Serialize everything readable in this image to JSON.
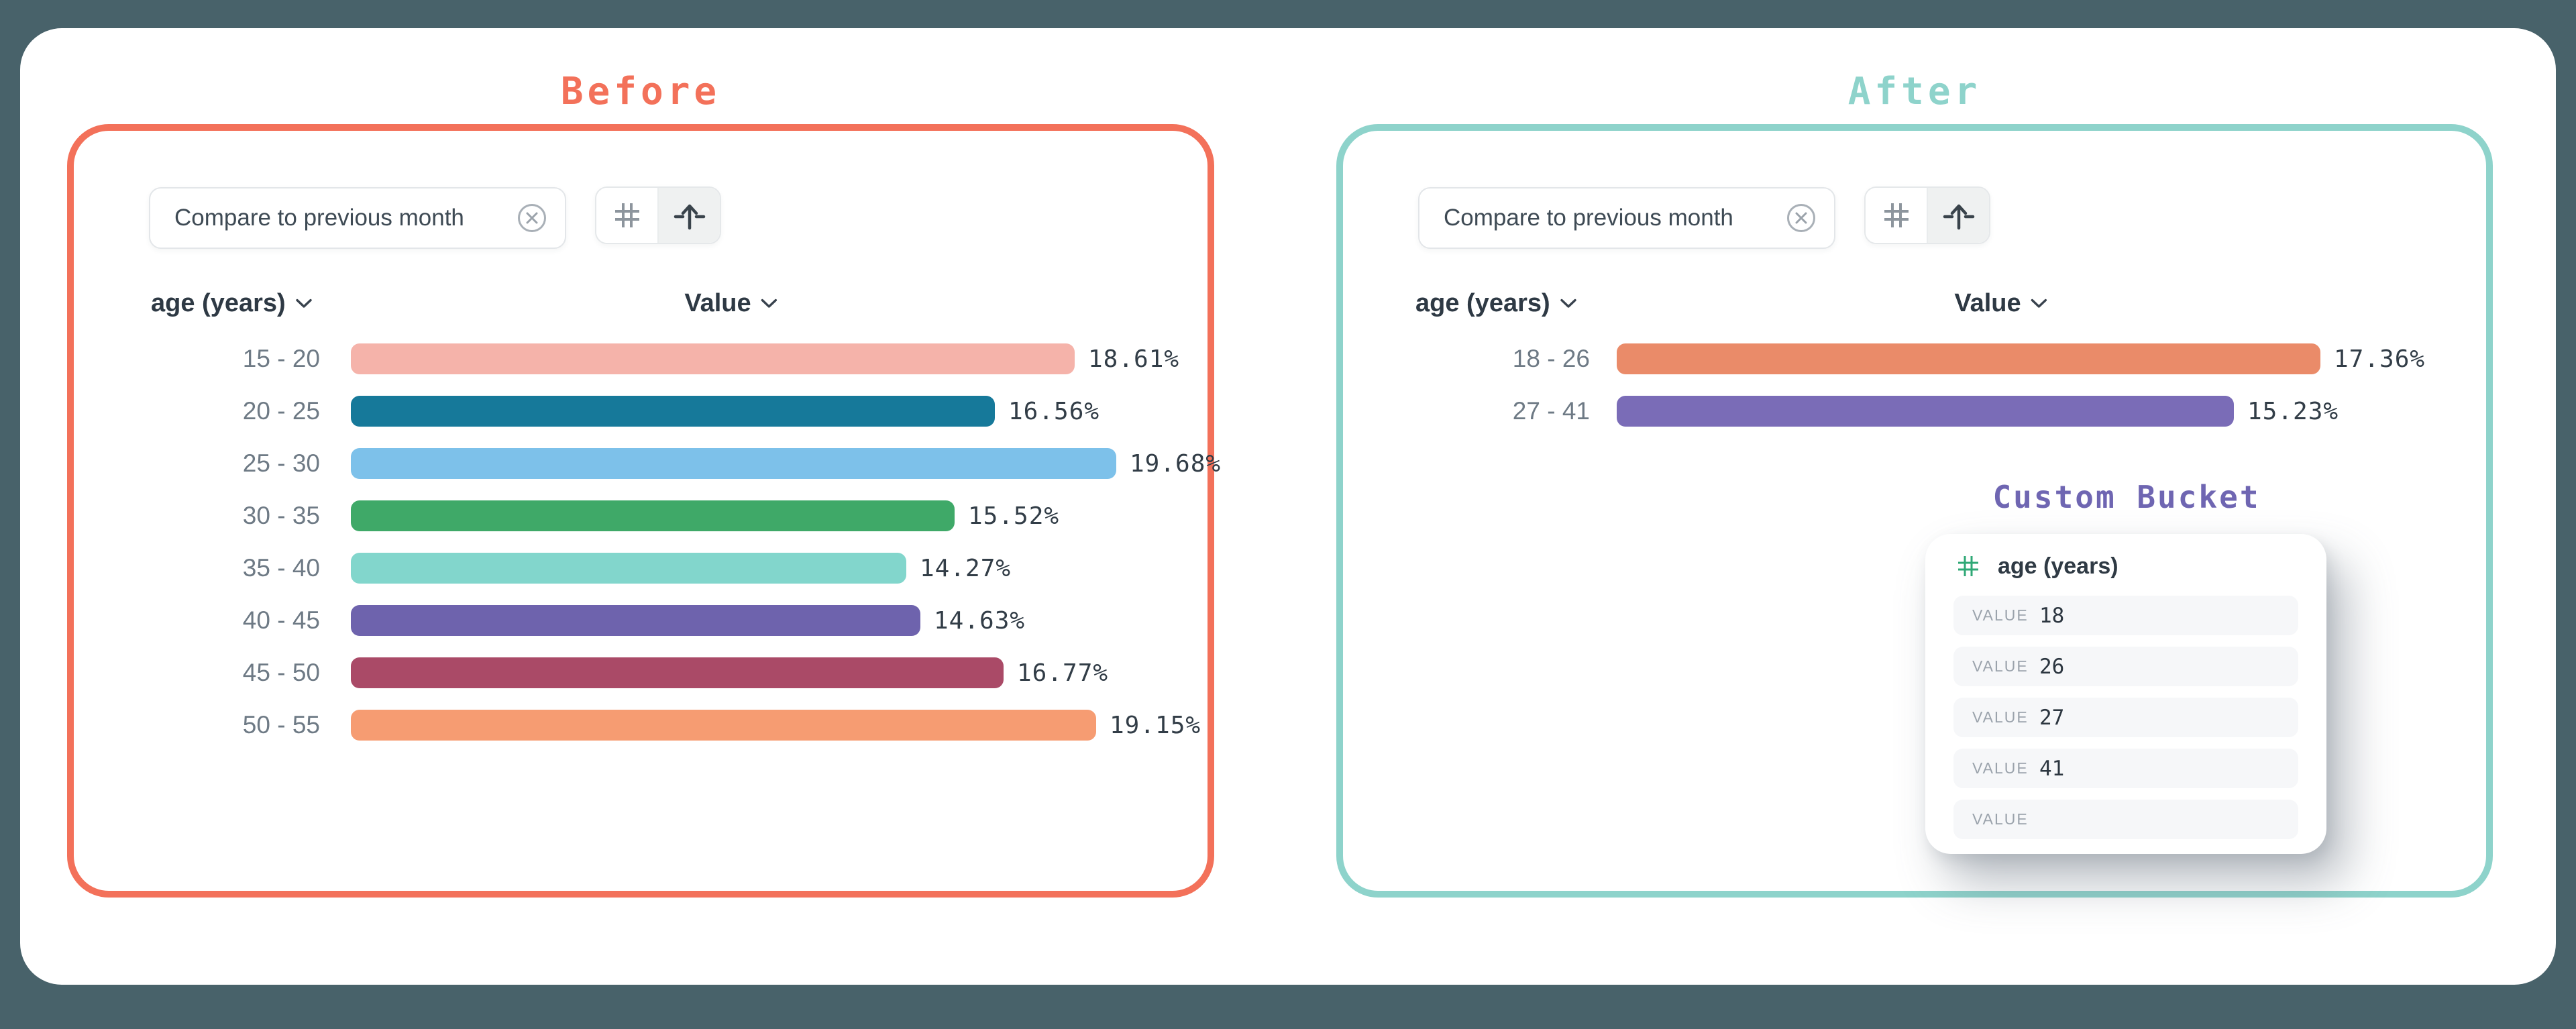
{
  "page": {
    "background_color": "#48626a",
    "card_background": "#ffffff"
  },
  "before": {
    "title": "Before",
    "accent_color": "#f3715a",
    "toolbar": {
      "filter_chip": "Compare to previous month",
      "remove_filter_icon": "circle-x-icon",
      "numeric_buckets_icon": "hash-icon",
      "custom_buckets_icon": "arrow-up-from-line-icon",
      "selected_mode": "custom_buckets"
    },
    "columns": {
      "dimension": "age (years)",
      "value": "Value"
    }
  },
  "after": {
    "title": "After",
    "accent_color": "#8ed3cb",
    "toolbar": {
      "filter_chip": "Compare to previous month",
      "remove_filter_icon": "circle-x-icon",
      "numeric_buckets_icon": "hash-icon",
      "custom_buckets_icon": "arrow-up-from-line-icon",
      "selected_mode": "custom_buckets"
    },
    "columns": {
      "dimension": "age (years)",
      "value": "Value"
    }
  },
  "custom_bucket": {
    "title": "Custom Bucket",
    "title_color": "#6f66b2",
    "field_name": "age (years)",
    "field_icon": "hash-icon",
    "field_icon_color": "#2fa876",
    "rows": [
      {
        "label": "VALUE",
        "value": "18"
      },
      {
        "label": "VALUE",
        "value": "26"
      },
      {
        "label": "VALUE",
        "value": "27"
      },
      {
        "label": "VALUE",
        "value": "41"
      },
      {
        "label": "VALUE",
        "value": ""
      }
    ]
  },
  "chart_data": [
    {
      "id": "before",
      "type": "bar",
      "orientation": "horizontal",
      "title": "Before",
      "xlabel": "Value",
      "ylabel": "age (years)",
      "categories": [
        "15 - 20",
        "20 - 25",
        "25 - 30",
        "30 - 35",
        "35 - 40",
        "40 - 45",
        "45 - 50",
        "50 - 55"
      ],
      "values": [
        18.61,
        16.56,
        19.68,
        15.52,
        14.27,
        14.63,
        16.77,
        19.15
      ],
      "labels": [
        "18.61%",
        "16.56%",
        "19.68%",
        "15.52%",
        "14.27%",
        "14.63%",
        "16.77%",
        "19.15%"
      ],
      "colors": [
        "#f5b3aa",
        "#16799a",
        "#7dc1ea",
        "#3fa968",
        "#82d6cc",
        "#6e63ad",
        "#aa4a67",
        "#f69c72"
      ],
      "xlim": [
        0,
        20
      ],
      "grid": false,
      "legend": false
    },
    {
      "id": "after",
      "type": "bar",
      "orientation": "horizontal",
      "title": "After",
      "xlabel": "Value",
      "ylabel": "age (years)",
      "categories": [
        "18 - 26",
        "27 - 41"
      ],
      "values": [
        17.36,
        15.23
      ],
      "labels": [
        "17.36%",
        "15.23%"
      ],
      "colors": [
        "#ea8b69",
        "#7a6cb7"
      ],
      "xlim": [
        0,
        20
      ],
      "grid": false,
      "legend": false
    }
  ]
}
